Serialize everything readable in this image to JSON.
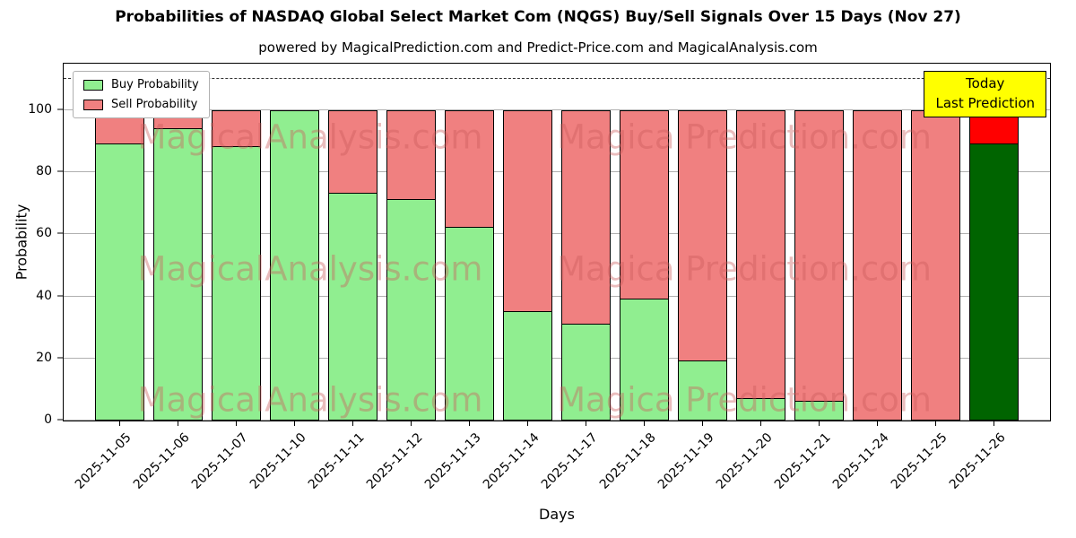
{
  "chart_data": {
    "type": "bar",
    "stacked": true,
    "title": "Probabilities of NASDAQ Global Select Market Com (NQGS) Buy/Sell Signals Over 15 Days (Nov 27)",
    "subtitle": "powered by MagicalPrediction.com and Predict-Price.com and MagicalAnalysis.com",
    "xlabel": "Days",
    "ylabel": "Probability",
    "ylim": [
      0,
      115
    ],
    "yticks": [
      0,
      20,
      40,
      60,
      80,
      100
    ],
    "dashed_line_y": 110,
    "grid": true,
    "legend_position": "upper left",
    "categories": [
      "2025-11-05",
      "2025-11-06",
      "2025-11-07",
      "2025-11-10",
      "2025-11-11",
      "2025-11-12",
      "2025-11-13",
      "2025-11-14",
      "2025-11-17",
      "2025-11-18",
      "2025-11-19",
      "2025-11-20",
      "2025-11-21",
      "2025-11-24",
      "2025-11-25",
      "2025-11-26"
    ],
    "series": [
      {
        "name": "Buy Probability",
        "color": "#90ee90",
        "values": [
          89,
          94,
          88,
          100,
          73,
          71,
          62,
          35,
          31,
          39,
          19,
          7,
          6,
          0,
          0,
          89
        ]
      },
      {
        "name": "Sell Probability",
        "color": "#f08080",
        "values": [
          11,
          6,
          12,
          0,
          27,
          29,
          38,
          65,
          69,
          61,
          81,
          93,
          94,
          100,
          100,
          11
        ]
      }
    ],
    "bar_edge_color": "#000000",
    "last_bar_highlight": {
      "buy_color": "#006400",
      "sell_color": "#ff0000"
    },
    "annotation": {
      "lines": [
        "Today",
        "Last Prediction"
      ],
      "bg_color": "#ffff00",
      "border_color": "#000000"
    },
    "watermarks": {
      "left_text": "MagicalAnalysis.com",
      "right_text": "Magica Prediction.com",
      "color": "#cd5c5c",
      "opacity": 0.4
    }
  }
}
